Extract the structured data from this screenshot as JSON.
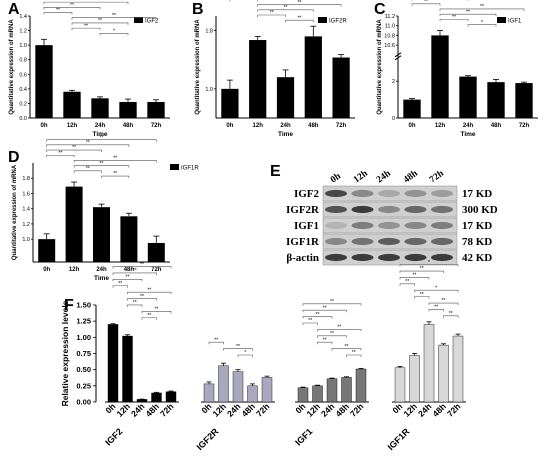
{
  "chart_data": [
    {
      "panel": "A",
      "type": "bar",
      "legend": "IGF2",
      "ylabel": "Quantitative expression of mRNA",
      "xlabel": "Time",
      "categories": [
        "0h",
        "12h",
        "24h",
        "48h",
        "72h"
      ],
      "values": [
        1.0,
        0.36,
        0.27,
        0.22,
        0.22
      ],
      "errors": [
        0.08,
        0.02,
        0.02,
        0.04,
        0.03
      ],
      "ylim": [
        0,
        1.4
      ],
      "ticks": [
        0.0,
        0.2,
        0.4,
        0.6,
        0.8,
        1.0,
        1.2,
        1.4
      ],
      "significance": [
        {
          "pair": [
            0,
            4
          ],
          "label": "**"
        },
        {
          "pair": [
            0,
            3
          ],
          "label": "**"
        },
        {
          "pair": [
            0,
            2
          ],
          "label": "**"
        },
        {
          "pair": [
            0,
            1
          ],
          "label": "**"
        },
        {
          "pair": [
            1,
            4
          ],
          "label": "**"
        },
        {
          "pair": [
            1,
            3
          ],
          "label": "**"
        },
        {
          "pair": [
            1,
            2
          ],
          "label": "**"
        },
        {
          "pair": [
            2,
            3
          ],
          "label": "*"
        }
      ]
    },
    {
      "panel": "B",
      "type": "bar",
      "legend": "IGF2R",
      "ylabel": "Quantitative expression of mRNA",
      "xlabel": "Time",
      "categories": [
        "0h",
        "12h",
        "24h",
        "48h",
        "72h"
      ],
      "values": [
        1.0,
        1.67,
        1.16,
        1.72,
        1.43
      ],
      "errors": [
        0.12,
        0.05,
        0.1,
        0.14,
        0.04
      ],
      "ylim": [
        0.6,
        2.0
      ],
      "ticks": [
        1.0,
        1.8
      ],
      "significance": [
        {
          "pair": [
            0,
            4
          ],
          "label": "**"
        },
        {
          "pair": [
            0,
            3
          ],
          "label": "**"
        },
        {
          "pair": [
            0,
            2
          ],
          "label": "**"
        },
        {
          "pair": [
            0,
            1
          ],
          "label": "**"
        },
        {
          "pair": [
            1,
            4
          ],
          "label": "**"
        },
        {
          "pair": [
            1,
            3
          ],
          "label": "**"
        },
        {
          "pair": [
            1,
            2
          ],
          "label": "**"
        },
        {
          "pair": [
            2,
            3
          ],
          "label": "**"
        }
      ]
    },
    {
      "panel": "C",
      "type": "bar",
      "legend": "IGF1",
      "ylabel": "Quantitative expression of mRNA",
      "xlabel": "Time",
      "categories": [
        "0h",
        "12h",
        "24h",
        "48h",
        "72h"
      ],
      "values": [
        1.0,
        10.8,
        2.25,
        1.95,
        1.9
      ],
      "errors": [
        0.06,
        0.1,
        0.05,
        0.15,
        0.05
      ],
      "ylim": [
        0,
        11.2
      ],
      "ticks": [
        0,
        2,
        10.6,
        10.8,
        11.0,
        11.2
      ],
      "broken_axis": {
        "lower": [
          0,
          3
        ],
        "upper": [
          10.4,
          11.2
        ]
      },
      "significance": [
        {
          "pair": [
            0,
            4
          ],
          "label": "**"
        },
        {
          "pair": [
            0,
            3
          ],
          "label": "**"
        },
        {
          "pair": [
            0,
            2
          ],
          "label": "**"
        },
        {
          "pair": [
            0,
            1
          ],
          "label": "**"
        },
        {
          "pair": [
            1,
            4
          ],
          "label": "**"
        },
        {
          "pair": [
            1,
            3
          ],
          "label": "**"
        },
        {
          "pair": [
            1,
            2
          ],
          "label": "**"
        },
        {
          "pair": [
            2,
            3
          ],
          "label": "*"
        }
      ]
    },
    {
      "panel": "D",
      "type": "bar",
      "legend": "IGF1R",
      "ylabel": "Quantitative expression of mRNA",
      "xlabel": "Time",
      "categories": [
        "0h",
        "12h",
        "24h",
        "48h",
        "72h"
      ],
      "values": [
        1.0,
        1.69,
        1.42,
        1.3,
        0.95
      ],
      "errors": [
        0.07,
        0.06,
        0.04,
        0.04,
        0.09
      ],
      "ylim": [
        0.7,
        2.0
      ],
      "ticks": [
        1.0,
        1.2,
        1.4,
        1.6,
        1.8
      ],
      "significance": [
        {
          "pair": [
            0,
            4
          ],
          "label": "**"
        },
        {
          "pair": [
            0,
            3
          ],
          "label": "**"
        },
        {
          "pair": [
            0,
            2
          ],
          "label": "**"
        },
        {
          "pair": [
            0,
            1
          ],
          "label": "**"
        },
        {
          "pair": [
            1,
            4
          ],
          "label": "**"
        },
        {
          "pair": [
            1,
            3
          ],
          "label": "**"
        },
        {
          "pair": [
            1,
            2
          ],
          "label": "**"
        },
        {
          "pair": [
            2,
            3
          ],
          "label": "**"
        }
      ]
    },
    {
      "panel": "F",
      "type": "bar",
      "ylabel": "Relative expression levels",
      "ylim": [
        0,
        1.5
      ],
      "ticks": [
        0.0,
        0.25,
        0.5,
        0.75,
        1.0,
        1.25,
        1.5
      ],
      "groups": [
        {
          "name": "IGF2",
          "color": "#000000",
          "categories": [
            "0h",
            "12h",
            "24h",
            "48h",
            "72h"
          ],
          "values": [
            1.2,
            1.02,
            0.04,
            0.14,
            0.16
          ],
          "errors": [
            0.01,
            0.02,
            0.005,
            0.01,
            0.01
          ],
          "significance": [
            {
              "pair": [
                0,
                4
              ],
              "label": "**"
            },
            {
              "pair": [
                0,
                3
              ],
              "label": "**"
            },
            {
              "pair": [
                0,
                2
              ],
              "label": "**"
            },
            {
              "pair": [
                0,
                1
              ],
              "label": "**"
            },
            {
              "pair": [
                1,
                4
              ],
              "label": "**"
            },
            {
              "pair": [
                1,
                3
              ],
              "label": "**"
            },
            {
              "pair": [
                1,
                2
              ],
              "label": "**"
            },
            {
              "pair": [
                2,
                4
              ],
              "label": "**"
            },
            {
              "pair": [
                2,
                3
              ],
              "label": "**"
            }
          ]
        },
        {
          "name": "IGF2R",
          "color": "#a9a9bd",
          "categories": [
            "0h",
            "12h",
            "24h",
            "48h",
            "72h"
          ],
          "values": [
            0.28,
            0.56,
            0.47,
            0.25,
            0.38
          ],
          "errors": [
            0.03,
            0.04,
            0.03,
            0.03,
            0.02
          ],
          "significance": [
            {
              "pair": [
                0,
                1
              ],
              "label": "**"
            },
            {
              "pair": [
                1,
                3
              ],
              "label": "**"
            },
            {
              "pair": [
                2,
                3
              ],
              "label": "*"
            }
          ]
        },
        {
          "name": "IGF1",
          "color": "#777777",
          "categories": [
            "0h",
            "12h",
            "24h",
            "48h",
            "72h"
          ],
          "values": [
            0.22,
            0.25,
            0.36,
            0.38,
            0.51
          ],
          "errors": [
            0.01,
            0.01,
            0.01,
            0.01,
            0.01
          ],
          "significance": [
            {
              "pair": [
                0,
                4
              ],
              "label": "**"
            },
            {
              "pair": [
                0,
                3
              ],
              "label": "**"
            },
            {
              "pair": [
                0,
                2
              ],
              "label": "**"
            },
            {
              "pair": [
                0,
                1
              ],
              "label": "**"
            },
            {
              "pair": [
                1,
                4
              ],
              "label": "**"
            },
            {
              "pair": [
                1,
                3
              ],
              "label": "**"
            },
            {
              "pair": [
                1,
                2
              ],
              "label": "**"
            },
            {
              "pair": [
                2,
                4
              ],
              "label": "**"
            },
            {
              "pair": [
                3,
                4
              ],
              "label": "**"
            }
          ]
        },
        {
          "name": "IGF1R",
          "color": "#d8d8d8",
          "categories": [
            "0h",
            "12h",
            "24h",
            "48h",
            "72h"
          ],
          "values": [
            0.53,
            0.72,
            1.2,
            0.88,
            1.02
          ],
          "errors": [
            0.02,
            0.03,
            0.04,
            0.02,
            0.03
          ],
          "significance": [
            {
              "pair": [
                0,
                4
              ],
              "label": "*"
            },
            {
              "pair": [
                0,
                3
              ],
              "label": "**"
            },
            {
              "pair": [
                0,
                2
              ],
              "label": "**"
            },
            {
              "pair": [
                0,
                1
              ],
              "label": "**"
            },
            {
              "pair": [
                1,
                4
              ],
              "label": "*"
            },
            {
              "pair": [
                1,
                2
              ],
              "label": "**"
            },
            {
              "pair": [
                2,
                4
              ],
              "label": "**"
            },
            {
              "pair": [
                2,
                3
              ],
              "label": "**"
            },
            {
              "pair": [
                3,
                4
              ],
              "label": "**"
            }
          ]
        }
      ]
    }
  ],
  "blot": {
    "panel": "E",
    "lanes": [
      "0h",
      "12h",
      "24h",
      "48h",
      "72h"
    ],
    "rows": [
      {
        "protein": "IGF2",
        "size": "17 KD"
      },
      {
        "protein": "IGF2R",
        "size": "300 KD"
      },
      {
        "protein": "IGF1",
        "size": "17 KD"
      },
      {
        "protein": "IGF1R",
        "size": "78 KD"
      },
      {
        "protein": "β-actin",
        "size": "42 KD"
      }
    ]
  }
}
